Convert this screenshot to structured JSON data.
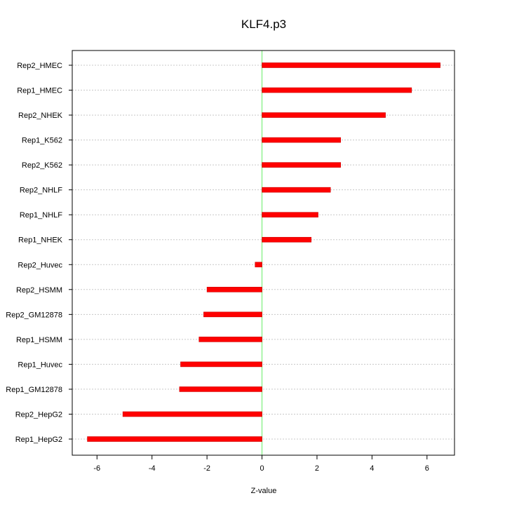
{
  "chart_data": {
    "type": "bar",
    "orientation": "horizontal",
    "title": "KLF4.p3",
    "xlabel": "Z-value",
    "ylabel": "",
    "xlim": [
      -6.9,
      7.0
    ],
    "xticks": [
      -6,
      -4,
      -2,
      0,
      2,
      4,
      6
    ],
    "grid": "horizontal dotted",
    "categories": [
      "Rep2_HMEC",
      "Rep1_HMEC",
      "Rep2_NHEK",
      "Rep1_K562",
      "Rep2_K562",
      "Rep2_NHLF",
      "Rep1_NHLF",
      "Rep1_NHEK",
      "Rep2_Huvec",
      "Rep2_HSMM",
      "Rep2_GM12878",
      "Rep1_HSMM",
      "Rep1_Huvec",
      "Rep1_GM12878",
      "Rep2_HepG2",
      "Rep1_HepG2"
    ],
    "values": [
      6.48,
      5.44,
      4.49,
      2.86,
      2.86,
      2.49,
      2.04,
      1.79,
      -0.25,
      -2.0,
      -2.12,
      -2.29,
      -2.96,
      -3.0,
      -5.06,
      -6.35
    ],
    "colors": {
      "bar": "#ff0000",
      "bar_edge": "#cc0000",
      "zero_line": "#66ee66",
      "grid": "#c8c8c8",
      "axis": "#000000"
    }
  }
}
